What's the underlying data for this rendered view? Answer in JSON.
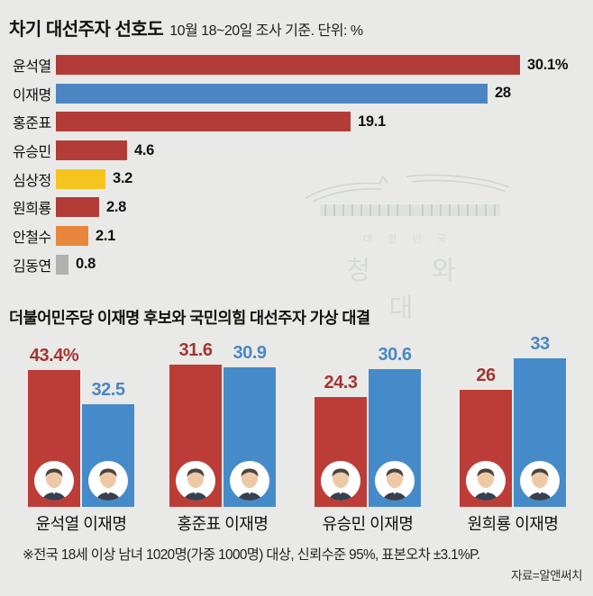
{
  "title": {
    "main": "차기 대선주자 선호도",
    "subtitle": "10월 18~20일 조사 기준. 단위: %"
  },
  "watermark": {
    "line1": "대 한 민 국",
    "line2": "청 와 대"
  },
  "section2": {
    "title": "더불어민주당 이재명 후보와 국민의힘 대선주자 가상 대결"
  },
  "footnote": "※전국 18세 이상 남녀 1020명(가중 1000명) 대상, 신뢰수준 95%, 표본오차 ±3.1%P.",
  "source": "자료=알앤써치",
  "colors": {
    "background": "#e9eae7",
    "bar_red": "#b43c38",
    "bar_blue": "#4b86c3",
    "bar_yellow": "#f5c41e",
    "bar_orange": "#e8873b",
    "bar_gray": "#b1b1ae",
    "matchup_red": "#bc3d37",
    "matchup_blue": "#468bc9",
    "label_red": "#a33531",
    "label_blue": "#4a87c4",
    "text_dark": "#111111",
    "watermark": "#d3d8d4"
  },
  "chart_data": [
    {
      "type": "bar",
      "orientation": "horizontal",
      "title": "차기 대선주자 선호도",
      "subtitle": "10월 18~20일 조사 기준. 단위: %",
      "unit": "%",
      "categories": [
        "윤석열",
        "이재명",
        "홍준표",
        "유승민",
        "심상정",
        "원희룡",
        "안철수",
        "김동연"
      ],
      "values": [
        30.1,
        28,
        19.1,
        4.6,
        3.2,
        2.8,
        2.1,
        0.8
      ],
      "value_labels": [
        "30.1%",
        "28",
        "19.1",
        "4.6",
        "3.2",
        "2.8",
        "2.1",
        "0.8"
      ],
      "bar_colors": [
        "#b43c38",
        "#4b86c3",
        "#b43c38",
        "#b43c38",
        "#f5c41e",
        "#b43c38",
        "#e8873b",
        "#b1b1ae"
      ],
      "xlim": [
        0,
        34
      ],
      "grid": false,
      "legend": false
    },
    {
      "type": "grouped_bar",
      "title": "더불어민주당 이재명 후보와 국민의힘 대선주자 가상 대결",
      "unit": "%",
      "pairs": [
        {
          "left": {
            "name": "윤석열",
            "value": 43.4,
            "label": "43.4%"
          },
          "right": {
            "name": "이재명",
            "value": 32.5,
            "label": "32.5"
          }
        },
        {
          "left": {
            "name": "홍준표",
            "value": 31.6,
            "label": "31.6"
          },
          "right": {
            "name": "이재명",
            "value": 30.9,
            "label": "30.9"
          }
        },
        {
          "left": {
            "name": "유승민",
            "value": 24.3,
            "label": "24.3"
          },
          "right": {
            "name": "이재명",
            "value": 30.6,
            "label": "30.6"
          }
        },
        {
          "left": {
            "name": "원희룡",
            "value": 26,
            "label": "26"
          },
          "right": {
            "name": "이재명",
            "value": 33,
            "label": "33"
          }
        }
      ],
      "left_color": "#bc3d37",
      "right_color": "#468bc9",
      "left_label_color": "#a33531",
      "right_label_color": "#4a87c4"
    }
  ]
}
